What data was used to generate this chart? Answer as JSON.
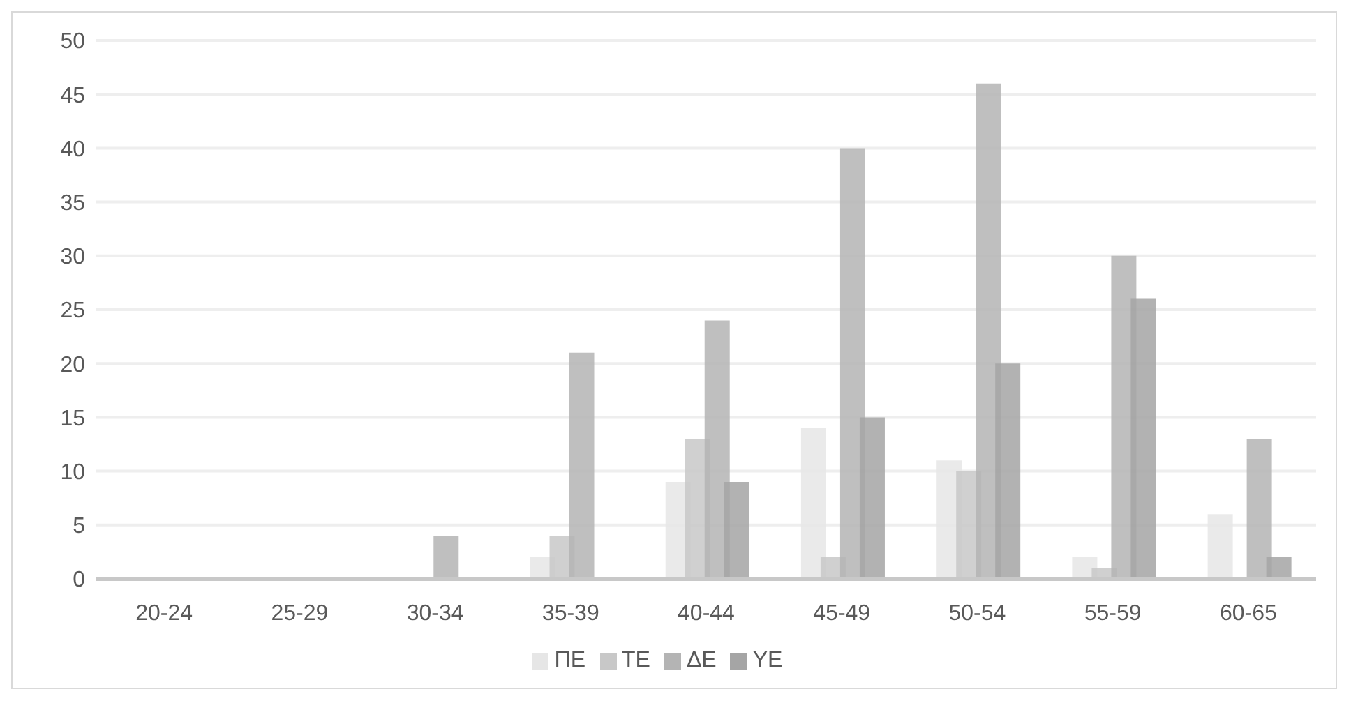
{
  "chart_data": {
    "type": "bar",
    "categories": [
      "20-24",
      "25-29",
      "30-34",
      "35-39",
      "40-44",
      "45-49",
      "50-54",
      "55-59",
      "60-65"
    ],
    "series": [
      {
        "name": "ΠΕ",
        "color": "#e6e6e6",
        "values": [
          0,
          0,
          0,
          2,
          9,
          14,
          11,
          2,
          6
        ]
      },
      {
        "name": "ΤΕ",
        "color": "#c8c8c8",
        "values": [
          0,
          0,
          0,
          4,
          13,
          2,
          10,
          1,
          0
        ]
      },
      {
        "name": "ΔΕ",
        "color": "#b4b4b4",
        "values": [
          0,
          0,
          4,
          21,
          24,
          40,
          46,
          30,
          13
        ]
      },
      {
        "name": "ΥΕ",
        "color": "#a5a5a5",
        "values": [
          0,
          0,
          0,
          0,
          9,
          15,
          20,
          26,
          2
        ]
      }
    ],
    "ylim": [
      0,
      50
    ],
    "yticks": [
      0,
      5,
      10,
      15,
      20,
      25,
      30,
      35,
      40,
      45,
      50
    ],
    "grid": "y",
    "legend": "bottom"
  }
}
